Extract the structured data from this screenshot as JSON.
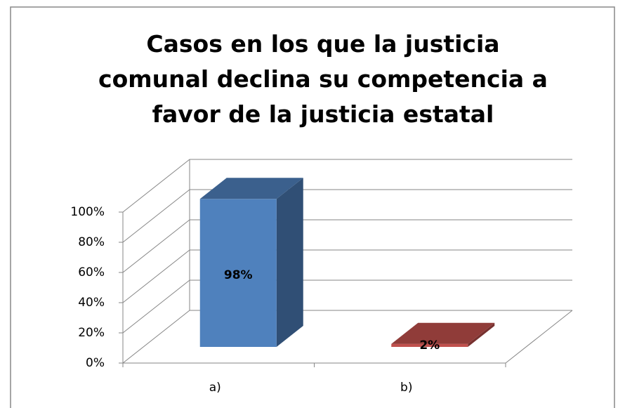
{
  "chart_data": {
    "type": "bar3d",
    "title": "Casos en los que la justicia comunal declina su competencia a favor de la justicia estatal",
    "categories": [
      "a)",
      "b)"
    ],
    "series": [
      {
        "values": [
          98,
          2
        ],
        "value_labels": [
          "98%",
          "2%"
        ],
        "colors": [
          "#4f81bd",
          "#c0504d"
        ]
      }
    ],
    "ylim": [
      0,
      100
    ],
    "yticks": [
      {
        "value": 0,
        "label": "0%"
      },
      {
        "value": 20,
        "label": "20%"
      },
      {
        "value": 40,
        "label": "40%"
      },
      {
        "value": 60,
        "label": "60%"
      },
      {
        "value": 80,
        "label": "80%"
      },
      {
        "value": 100,
        "label": "100%"
      }
    ],
    "grid": true
  }
}
